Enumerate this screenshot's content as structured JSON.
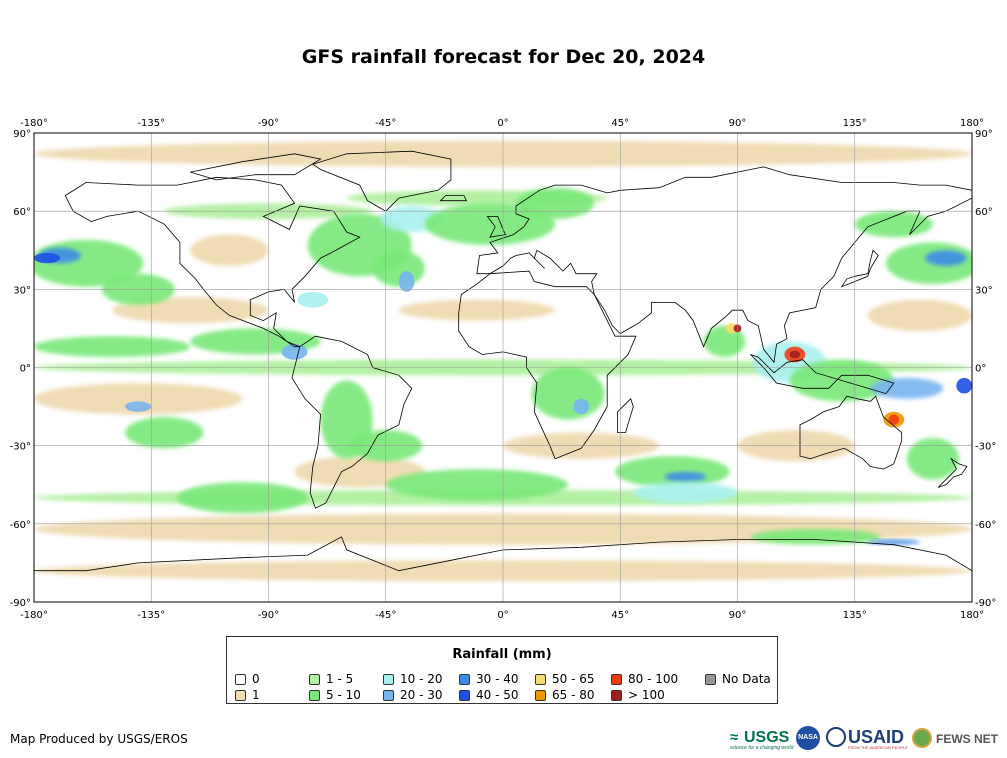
{
  "title": "GFS rainfall forecast for Dec 20, 2024",
  "map": {
    "lon_ticks": [
      "-180°",
      "-135°",
      "-90°",
      "-45°",
      "0°",
      "45°",
      "90°",
      "135°",
      "180°"
    ],
    "lat_ticks": [
      "90°",
      "60°",
      "30°",
      "0°",
      "-30°",
      "-60°",
      "-90°"
    ],
    "rain_zones": [
      {
        "lon": -160,
        "lat": 40,
        "rx": 22,
        "ry": 9,
        "cls": "5 - 10"
      },
      {
        "lon": -170,
        "lat": 43,
        "rx": 8,
        "ry": 3,
        "cls": "30 - 40"
      },
      {
        "lon": -175,
        "lat": 42,
        "rx": 5,
        "ry": 2,
        "cls": "40 - 50"
      },
      {
        "lon": -140,
        "lat": 30,
        "rx": 14,
        "ry": 6,
        "cls": "5 - 10"
      },
      {
        "lon": -150,
        "lat": 8,
        "rx": 30,
        "ry": 4,
        "cls": "5 - 10"
      },
      {
        "lon": -95,
        "lat": 10,
        "rx": 25,
        "ry": 5,
        "cls": "5 - 10"
      },
      {
        "lon": -80,
        "lat": 6,
        "rx": 5,
        "ry": 3,
        "cls": "20 - 30"
      },
      {
        "lon": -55,
        "lat": 47,
        "rx": 20,
        "ry": 12,
        "cls": "5 - 10"
      },
      {
        "lon": -35,
        "lat": 57,
        "rx": 12,
        "ry": 5,
        "cls": "10 - 20"
      },
      {
        "lon": -40,
        "lat": 38,
        "rx": 10,
        "ry": 7,
        "cls": "5 - 10"
      },
      {
        "lon": -37,
        "lat": 33,
        "rx": 3,
        "ry": 4,
        "cls": "20 - 30"
      },
      {
        "lon": -73,
        "lat": 26,
        "rx": 6,
        "ry": 3,
        "cls": "10 - 20"
      },
      {
        "lon": -5,
        "lat": 55,
        "rx": 25,
        "ry": 8,
        "cls": "5 - 10"
      },
      {
        "lon": 20,
        "lat": 63,
        "rx": 15,
        "ry": 6,
        "cls": "5 - 10"
      },
      {
        "lon": -60,
        "lat": -20,
        "rx": 10,
        "ry": 15,
        "cls": "5 - 10"
      },
      {
        "lon": -45,
        "lat": -30,
        "rx": 14,
        "ry": 6,
        "cls": "5 - 10"
      },
      {
        "lon": -10,
        "lat": -45,
        "rx": 35,
        "ry": 6,
        "cls": "5 - 10"
      },
      {
        "lon": 25,
        "lat": -10,
        "rx": 14,
        "ry": 10,
        "cls": "5 - 10"
      },
      {
        "lon": 30,
        "lat": -15,
        "rx": 3,
        "ry": 3,
        "cls": "20 - 30"
      },
      {
        "lon": 65,
        "lat": -40,
        "rx": 22,
        "ry": 6,
        "cls": "5 - 10"
      },
      {
        "lon": 70,
        "lat": -42,
        "rx": 8,
        "ry": 2,
        "cls": "30 - 40"
      },
      {
        "lon": 70,
        "lat": -48,
        "rx": 20,
        "ry": 4,
        "cls": "10 - 20"
      },
      {
        "lon": 85,
        "lat": 10,
        "rx": 8,
        "ry": 6,
        "cls": "5 - 10"
      },
      {
        "lon": 88,
        "lat": 15,
        "rx": 2.5,
        "ry": 2,
        "cls": "50 - 65"
      },
      {
        "lon": 90,
        "lat": 15,
        "rx": 1.5,
        "ry": 1.5,
        "cls": "> 100"
      },
      {
        "lon": 110,
        "lat": 2,
        "rx": 14,
        "ry": 8,
        "cls": "10 - 20"
      },
      {
        "lon": 112,
        "lat": 5,
        "rx": 4,
        "ry": 3,
        "cls": "80 - 100"
      },
      {
        "lon": 112,
        "lat": 5,
        "rx": 2,
        "ry": 1.5,
        "cls": "> 100"
      },
      {
        "lon": 130,
        "lat": -5,
        "rx": 20,
        "ry": 8,
        "cls": "5 - 10"
      },
      {
        "lon": 155,
        "lat": -8,
        "rx": 14,
        "ry": 4,
        "cls": "20 - 30"
      },
      {
        "lon": 150,
        "lat": -20,
        "rx": 4,
        "ry": 3,
        "cls": "65 - 80"
      },
      {
        "lon": 150,
        "lat": -20,
        "rx": 2,
        "ry": 2,
        "cls": "80 - 100"
      },
      {
        "lon": 177,
        "lat": -7,
        "rx": 3,
        "ry": 3,
        "cls": "40 - 50"
      },
      {
        "lon": 165,
        "lat": 40,
        "rx": 18,
        "ry": 8,
        "cls": "5 - 10"
      },
      {
        "lon": 170,
        "lat": 42,
        "rx": 8,
        "ry": 3,
        "cls": "30 - 40"
      },
      {
        "lon": 150,
        "lat": 55,
        "rx": 15,
        "ry": 5,
        "cls": "5 - 10"
      },
      {
        "lon": 165,
        "lat": -35,
        "rx": 10,
        "ry": 8,
        "cls": "5 - 10"
      },
      {
        "lon": -130,
        "lat": -25,
        "rx": 15,
        "ry": 6,
        "cls": "5 - 10"
      },
      {
        "lon": -140,
        "lat": -15,
        "rx": 5,
        "ry": 2,
        "cls": "20 - 30"
      },
      {
        "lon": -100,
        "lat": -50,
        "rx": 25,
        "ry": 6,
        "cls": "5 - 10"
      },
      {
        "lon": 120,
        "lat": -65,
        "rx": 25,
        "ry": 3,
        "cls": "5 - 10"
      },
      {
        "lon": 150,
        "lat": -67,
        "rx": 10,
        "ry": 1,
        "cls": "30 - 40"
      }
    ]
  },
  "legend": {
    "title": "Rainfall (mm)",
    "items": [
      {
        "label": "0",
        "color": "#ffffff"
      },
      {
        "label": "1",
        "color": "#f0dcb4"
      },
      {
        "label": "1 - 5",
        "color": "#b4f0a4"
      },
      {
        "label": "5 - 10",
        "color": "#78e878"
      },
      {
        "label": "10 - 20",
        "color": "#aaf0f0"
      },
      {
        "label": "20 - 30",
        "color": "#78b4f0"
      },
      {
        "label": "30 - 40",
        "color": "#3c8ce6"
      },
      {
        "label": "40 - 50",
        "color": "#1e50e6"
      },
      {
        "label": "50 - 65",
        "color": "#f5dc6e"
      },
      {
        "label": "65 - 80",
        "color": "#f09600"
      },
      {
        "label": "80 - 100",
        "color": "#f03c14"
      },
      {
        "label": "> 100",
        "color": "#a01e1e"
      },
      {
        "label": "No Data",
        "color": "#969696"
      }
    ]
  },
  "footer": {
    "credit": "Map Produced by USGS/EROS",
    "logos": {
      "usgs": "USGS",
      "usgs_tagline": "science for a changing world",
      "nasa": "NASA",
      "usaid": "USAID",
      "usaid_tagline": "FROM THE AMERICAN PEOPLE",
      "fews": "FEWS NET"
    }
  }
}
